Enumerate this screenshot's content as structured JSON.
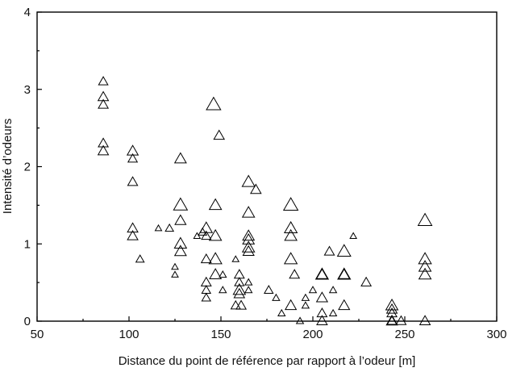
{
  "chart_data": {
    "type": "scatter",
    "title": "",
    "xlabel": "Distance du point de référence par rapport à l’odeur [m]",
    "ylabel": "Intensité d’odeurs",
    "xlim": [
      50,
      300
    ],
    "ylim": [
      0,
      4
    ],
    "xticks": [
      "50",
      "100",
      "150",
      "200",
      "250",
      "300"
    ],
    "yticks": [
      "0",
      "1",
      "2",
      "3",
      "4"
    ],
    "grid": false,
    "legend": "none",
    "marker": "triangle-open",
    "marker_size_encodes_value": true,
    "points": [
      {
        "x": 86,
        "y": 3.1,
        "s": 1.0
      },
      {
        "x": 86,
        "y": 2.9,
        "s": 1.2
      },
      {
        "x": 86,
        "y": 2.8,
        "s": 1.1
      },
      {
        "x": 86,
        "y": 2.3,
        "s": 1.1
      },
      {
        "x": 86,
        "y": 2.2,
        "s": 1.2
      },
      {
        "x": 102,
        "y": 2.2,
        "s": 1.3
      },
      {
        "x": 102,
        "y": 2.1,
        "s": 1.0
      },
      {
        "x": 102,
        "y": 1.8,
        "s": 1.1
      },
      {
        "x": 102,
        "y": 1.2,
        "s": 1.2
      },
      {
        "x": 102,
        "y": 1.1,
        "s": 1.2
      },
      {
        "x": 106,
        "y": 0.8,
        "s": 0.8
      },
      {
        "x": 116,
        "y": 1.2,
        "s": 0.5
      },
      {
        "x": 122,
        "y": 1.2,
        "s": 0.8
      },
      {
        "x": 125,
        "y": 0.7,
        "s": 0.5
      },
      {
        "x": 125,
        "y": 0.6,
        "s": 0.5
      },
      {
        "x": 128,
        "y": 2.1,
        "s": 1.4
      },
      {
        "x": 128,
        "y": 1.5,
        "s": 1.8
      },
      {
        "x": 128,
        "y": 1.3,
        "s": 1.3
      },
      {
        "x": 128,
        "y": 1.0,
        "s": 1.5
      },
      {
        "x": 128,
        "y": 0.9,
        "s": 1.4
      },
      {
        "x": 137,
        "y": 1.1,
        "s": 0.5
      },
      {
        "x": 140,
        "y": 1.15,
        "s": 0.8
      },
      {
        "x": 142,
        "y": 1.2,
        "s": 1.5
      },
      {
        "x": 142,
        "y": 1.1,
        "s": 1.0
      },
      {
        "x": 142,
        "y": 0.8,
        "s": 1.1
      },
      {
        "x": 142,
        "y": 0.5,
        "s": 1.1
      },
      {
        "x": 142,
        "y": 0.4,
        "s": 0.9
      },
      {
        "x": 142,
        "y": 0.3,
        "s": 0.9
      },
      {
        "x": 146,
        "y": 2.8,
        "s": 1.9
      },
      {
        "x": 147,
        "y": 1.5,
        "s": 1.5
      },
      {
        "x": 147,
        "y": 1.1,
        "s": 1.5
      },
      {
        "x": 147,
        "y": 0.8,
        "s": 1.6
      },
      {
        "x": 147,
        "y": 0.6,
        "s": 1.4
      },
      {
        "x": 149,
        "y": 2.4,
        "s": 1.2
      },
      {
        "x": 151,
        "y": 0.6,
        "s": 0.6
      },
      {
        "x": 151,
        "y": 0.4,
        "s": 0.6
      },
      {
        "x": 158,
        "y": 0.8,
        "s": 0.5
      },
      {
        "x": 160,
        "y": 0.6,
        "s": 1.1
      },
      {
        "x": 160,
        "y": 0.5,
        "s": 1.0
      },
      {
        "x": 160,
        "y": 0.4,
        "s": 1.5
      },
      {
        "x": 160,
        "y": 0.35,
        "s": 1.2
      },
      {
        "x": 158,
        "y": 0.2,
        "s": 1.0
      },
      {
        "x": 161,
        "y": 0.2,
        "s": 1.1
      },
      {
        "x": 165,
        "y": 1.8,
        "s": 1.6
      },
      {
        "x": 165,
        "y": 1.4,
        "s": 1.5
      },
      {
        "x": 165,
        "y": 1.1,
        "s": 1.4
      },
      {
        "x": 165,
        "y": 1.05,
        "s": 1.4
      },
      {
        "x": 165,
        "y": 0.95,
        "s": 1.5
      },
      {
        "x": 165,
        "y": 0.9,
        "s": 1.3
      },
      {
        "x": 165,
        "y": 0.5,
        "s": 0.6
      },
      {
        "x": 165,
        "y": 0.4,
        "s": 0.6
      },
      {
        "x": 169,
        "y": 1.7,
        "s": 1.2
      },
      {
        "x": 176,
        "y": 0.4,
        "s": 0.9
      },
      {
        "x": 180,
        "y": 0.3,
        "s": 0.6
      },
      {
        "x": 183,
        "y": 0.1,
        "s": 0.6
      },
      {
        "x": 188,
        "y": 1.5,
        "s": 1.9
      },
      {
        "x": 188,
        "y": 1.2,
        "s": 1.6
      },
      {
        "x": 188,
        "y": 1.1,
        "s": 1.5
      },
      {
        "x": 188,
        "y": 0.8,
        "s": 1.6
      },
      {
        "x": 188,
        "y": 0.2,
        "s": 1.3
      },
      {
        "x": 190,
        "y": 0.6,
        "s": 1.1
      },
      {
        "x": 193,
        "y": 0.0,
        "s": 0.6
      },
      {
        "x": 196,
        "y": 0.3,
        "s": 0.6
      },
      {
        "x": 196,
        "y": 0.2,
        "s": 0.6
      },
      {
        "x": 200,
        "y": 0.4,
        "s": 0.6
      },
      {
        "x": 205,
        "y": 0.6,
        "s": 1.6
      },
      {
        "x": 205,
        "y": 0.6,
        "s": 1.3
      },
      {
        "x": 205,
        "y": 0.3,
        "s": 1.3
      },
      {
        "x": 205,
        "y": 0.1,
        "s": 1.1
      },
      {
        "x": 205,
        "y": 0.0,
        "s": 1.2
      },
      {
        "x": 209,
        "y": 0.9,
        "s": 1.1
      },
      {
        "x": 211,
        "y": 0.4,
        "s": 0.6
      },
      {
        "x": 211,
        "y": 0.1,
        "s": 0.6
      },
      {
        "x": 217,
        "y": 0.9,
        "s": 1.7
      },
      {
        "x": 217,
        "y": 0.6,
        "s": 1.6
      },
      {
        "x": 217,
        "y": 0.6,
        "s": 1.3
      },
      {
        "x": 217,
        "y": 0.2,
        "s": 1.3
      },
      {
        "x": 222,
        "y": 1.1,
        "s": 0.5
      },
      {
        "x": 229,
        "y": 0.5,
        "s": 1.1
      },
      {
        "x": 243,
        "y": 0.2,
        "s": 1.5
      },
      {
        "x": 243,
        "y": 0.15,
        "s": 1.2
      },
      {
        "x": 243,
        "y": 0.1,
        "s": 1.1
      },
      {
        "x": 243,
        "y": 0.0,
        "s": 1.3
      },
      {
        "x": 243,
        "y": 0.0,
        "s": 1.0
      },
      {
        "x": 248,
        "y": 0.0,
        "s": 1.1
      },
      {
        "x": 261,
        "y": 1.3,
        "s": 1.8
      },
      {
        "x": 261,
        "y": 0.8,
        "s": 1.6
      },
      {
        "x": 261,
        "y": 0.7,
        "s": 1.5
      },
      {
        "x": 261,
        "y": 0.6,
        "s": 1.5
      },
      {
        "x": 261,
        "y": 0.0,
        "s": 1.2
      }
    ]
  }
}
